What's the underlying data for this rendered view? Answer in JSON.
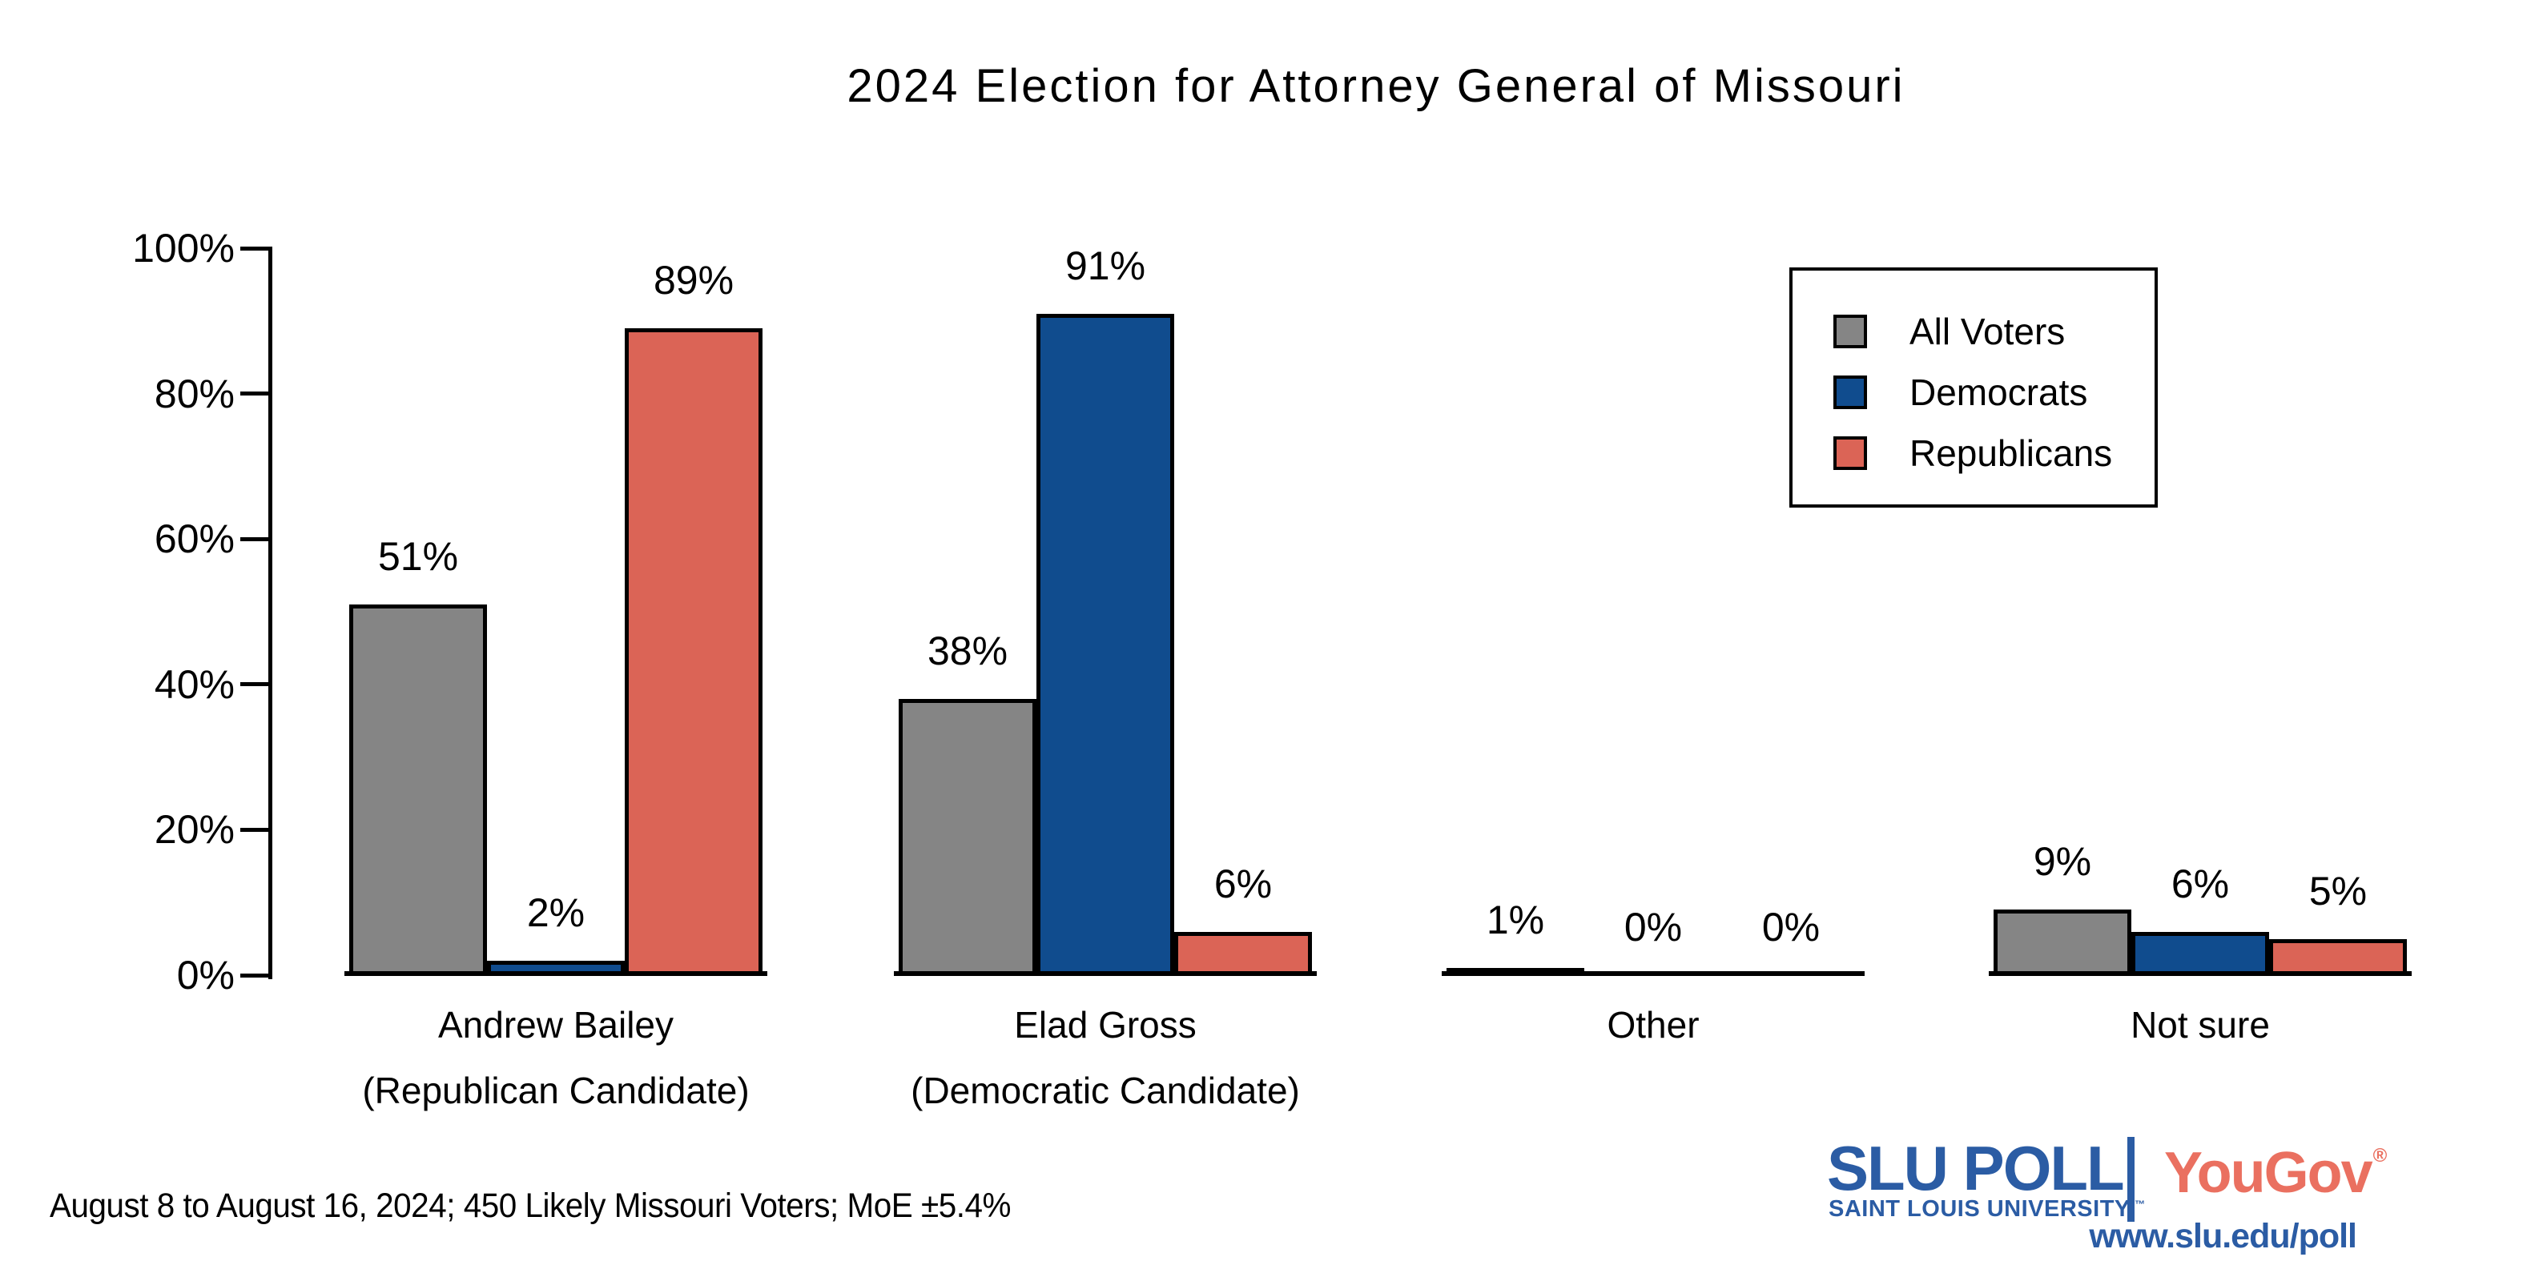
{
  "title": "2024 Election for Attorney General of Missouri",
  "footer": {
    "text": "August 8 to August 16, 2024; 450 Likely Missouri Voters; MoE ±5.4%"
  },
  "branding": {
    "slu_poll": "SLU POLL",
    "slu_subtitle": "SAINT LOUIS UNIVERSITY.",
    "trademark": "™",
    "yougov": "YouGov",
    "registered": "®",
    "url": "www.slu.edu/poll",
    "slu_blue": "#2B5CA4",
    "yougov_red": "#EA7060"
  },
  "chart_data": {
    "type": "bar",
    "title": "2024 Election for Attorney General of Missouri",
    "categories": [
      "Andrew Bailey",
      "Elad Gross",
      "Other",
      "Not sure"
    ],
    "category_sublabels": [
      "(Republican Candidate)",
      "(Democratic Candidate)",
      "",
      ""
    ],
    "series": [
      {
        "name": "All Voters",
        "color": "#858585",
        "values": [
          51,
          38,
          1,
          9
        ]
      },
      {
        "name": "Democrats",
        "color": "#104C8E",
        "values": [
          2,
          91,
          0,
          6
        ]
      },
      {
        "name": "Republicans",
        "color": "#DB6456",
        "values": [
          89,
          6,
          0,
          5
        ]
      }
    ],
    "xlabel": "",
    "ylabel": "",
    "ylim": [
      0,
      100
    ],
    "ytick_values": [
      0,
      20,
      40,
      60,
      80,
      100
    ],
    "ytick_labels": [
      "0%",
      "20%",
      "40%",
      "60%",
      "80%",
      "100%"
    ],
    "value_label_suffix": "%",
    "grid": false,
    "legend_position": "upper right",
    "bar_outline_color": "#000000"
  }
}
